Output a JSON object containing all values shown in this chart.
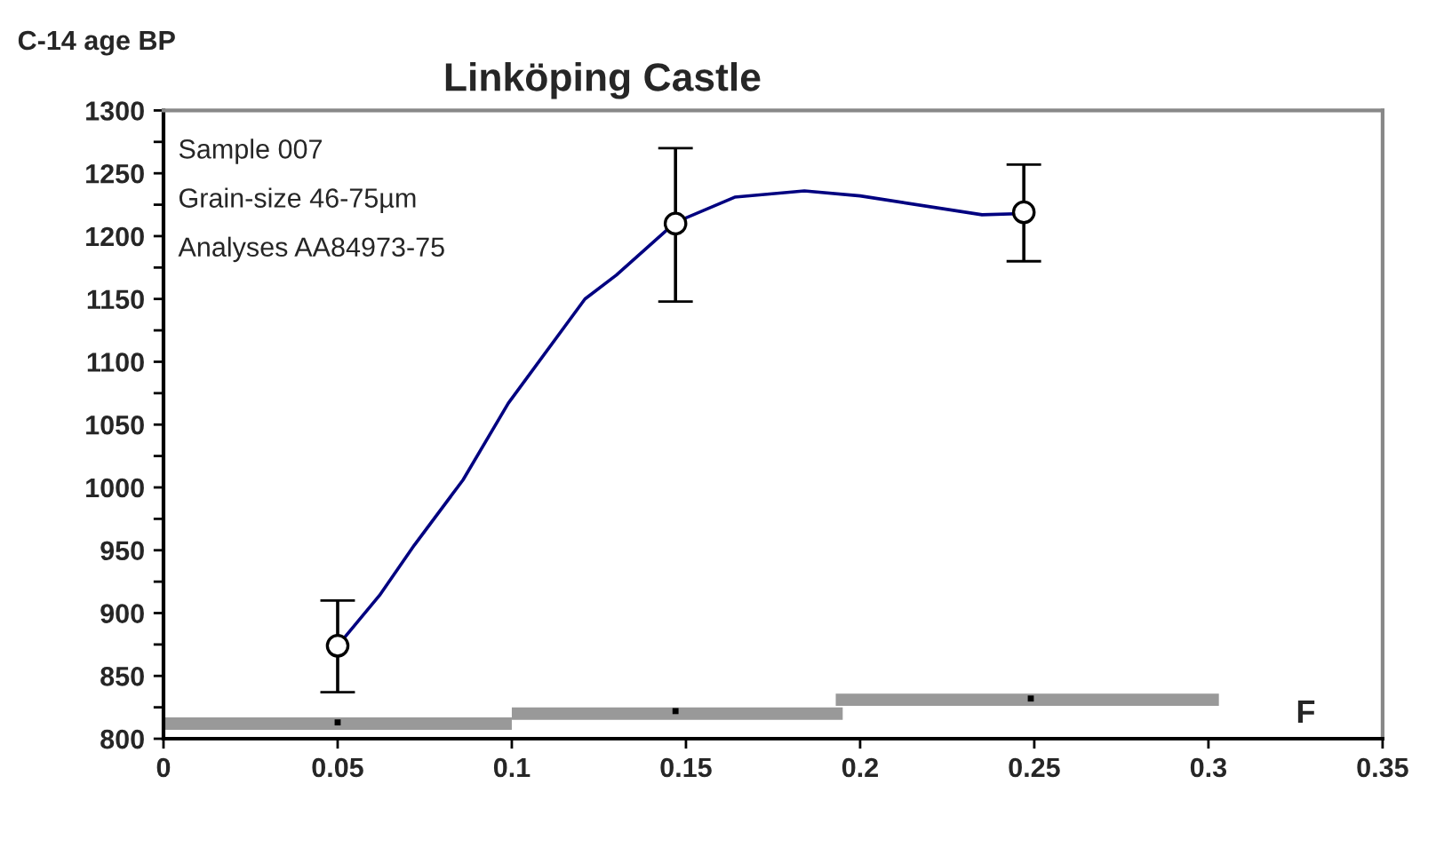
{
  "chart_data": {
    "type": "line",
    "title": "Linköping Castle",
    "ylabel": "C-14 age BP",
    "xlabel": "F",
    "xlim": [
      0,
      0.35
    ],
    "xticks": [
      0,
      0.05,
      0.1,
      0.15,
      0.2,
      0.25,
      0.3,
      0.35
    ],
    "ylim": [
      800,
      1300
    ],
    "yticks": [
      800,
      {
        "value": 825,
        "label": null
      },
      850,
      {
        "value": 875,
        "label": null
      },
      900,
      {
        "value": 925,
        "label": null
      },
      950,
      {
        "value": 975,
        "label": null
      },
      1000,
      {
        "value": 1025,
        "label": null
      },
      1050,
      {
        "value": 1075,
        "label": null
      },
      1100,
      {
        "value": 1125,
        "label": null
      },
      1150,
      {
        "value": 1175,
        "label": null
      },
      1200,
      {
        "value": 1225,
        "label": null
      },
      1250,
      {
        "value": 1275,
        "label": null
      },
      1300
    ],
    "grid": false,
    "annotations": [
      "Sample 007",
      "Grain-size 46-75µm",
      "Analyses AA84973-75"
    ],
    "series": [
      {
        "color": "#999999",
        "x": [
          0,
          0.1
        ],
        "values": [
          812,
          812
        ]
      },
      {
        "color": "#999999",
        "x": [
          0.1,
          0.195
        ],
        "values": [
          820,
          820
        ]
      },
      {
        "color": "#999999",
        "x": [
          0.193,
          0.303
        ],
        "values": [
          831,
          831
        ]
      },
      {
        "type": "scatter",
        "color": "#000000",
        "marker": "square",
        "x": [
          0.05,
          0.147,
          0.249
        ],
        "values": [
          813,
          822,
          832
        ]
      },
      {
        "color": "#000080",
        "marker": "none",
        "x": [
          0.05,
          0.062,
          0.072,
          0.086,
          0.099,
          0.121,
          0.13,
          0.147,
          0.164,
          0.184,
          0.2,
          0.235,
          0.247
        ],
        "values": [
          874,
          914,
          954,
          1006,
          1067,
          1150,
          1169,
          1211,
          1231,
          1236,
          1232,
          1217,
          1218
        ]
      },
      {
        "type": "scatter",
        "color": "#000000",
        "marker": "circle",
        "x": [
          0.05,
          0.147,
          0.247
        ],
        "values": [
          874,
          1210,
          1219
        ],
        "errors": [
          [
            837,
            910
          ],
          [
            1148,
            1270
          ],
          [
            1180,
            1257
          ]
        ]
      }
    ]
  }
}
